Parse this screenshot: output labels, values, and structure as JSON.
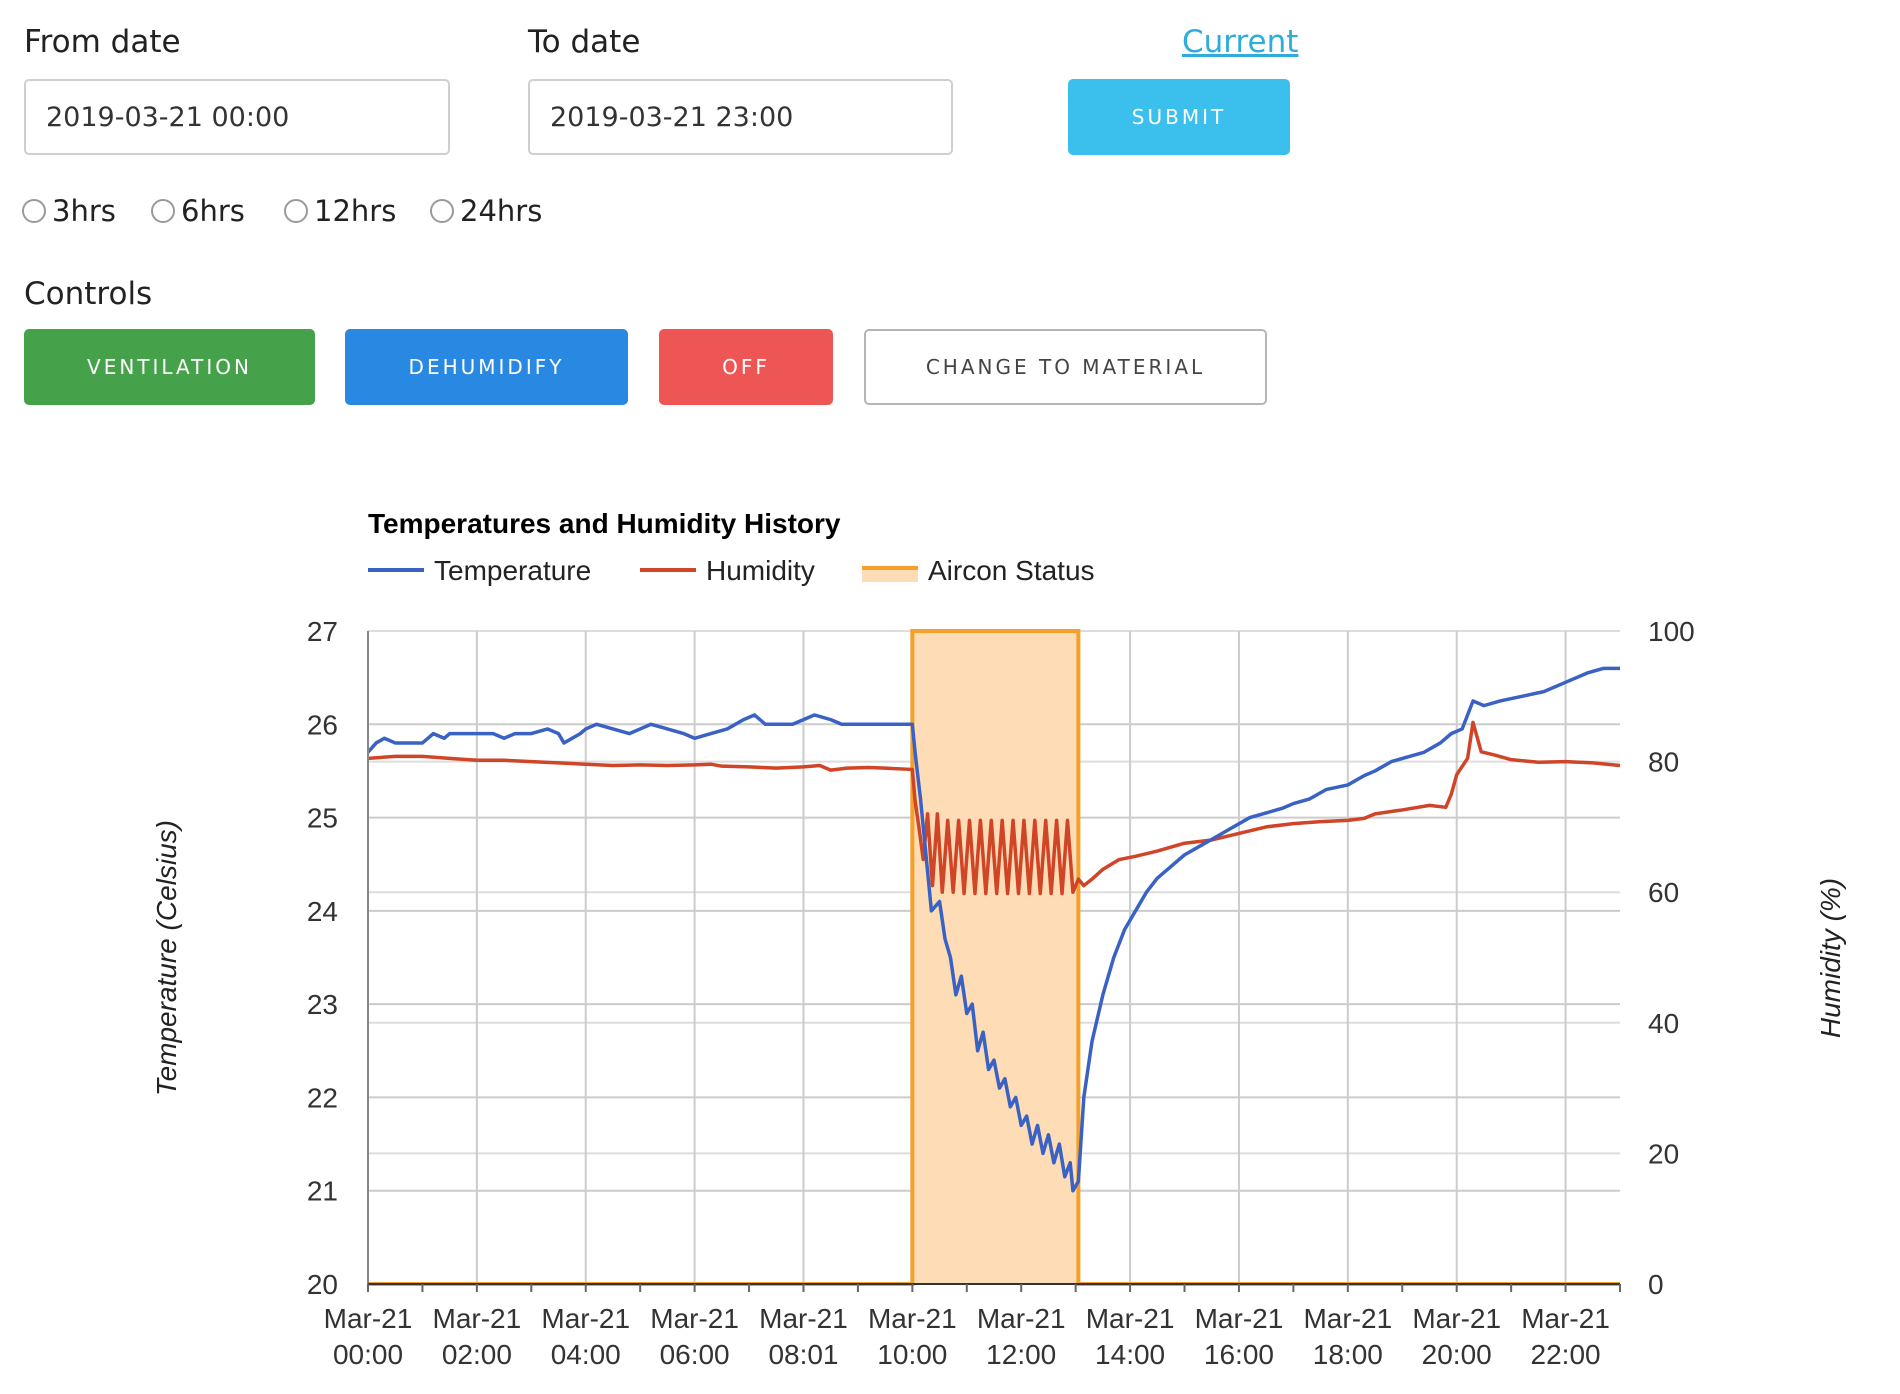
{
  "form": {
    "from_label": "From date",
    "from_value": "2019-03-21 00:00",
    "to_label": "To date",
    "to_value": "2019-03-21 23:00",
    "current_link": "Current",
    "submit_label": "SUBMIT",
    "ranges": [
      "3hrs",
      "6hrs",
      "12hrs",
      "24hrs"
    ]
  },
  "controls": {
    "heading": "Controls",
    "buttons": [
      {
        "label": "VENTILATION",
        "color": "#45a24b"
      },
      {
        "label": "DEHUMIDIFY",
        "color": "#2888e2"
      },
      {
        "label": "OFF",
        "color": "#ee5555"
      },
      {
        "label": "CHANGE TO MATERIAL",
        "color": "#ffffff"
      }
    ],
    "submit_color": "#3bc0ee"
  },
  "chart_data": {
    "type": "line",
    "title": "Temperatures and Humidity History",
    "legend": [
      "Temperature",
      "Humidity",
      "Aircon Status"
    ],
    "legend_position": "top-left",
    "ylabel": "Temperature (Celsius)",
    "y2label": "Humidity (%)",
    "ylim": [
      20,
      27
    ],
    "y2lim": [
      0,
      100
    ],
    "yticks": [
      20,
      21,
      22,
      23,
      24,
      25,
      26,
      27
    ],
    "y2ticks": [
      0,
      20,
      40,
      60,
      80,
      100
    ],
    "xlim": [
      0,
      23
    ],
    "xticks": [
      {
        "x": 0,
        "line1": "Mar-21",
        "line2": "00:00"
      },
      {
        "x": 2,
        "line1": "Mar-21",
        "line2": "02:00"
      },
      {
        "x": 4,
        "line1": "Mar-21",
        "line2": "04:00"
      },
      {
        "x": 6,
        "line1": "Mar-21",
        "line2": "06:00"
      },
      {
        "x": 8,
        "line1": "Mar-21",
        "line2": "08:01"
      },
      {
        "x": 10,
        "line1": "Mar-21",
        "line2": "10:00"
      },
      {
        "x": 12,
        "line1": "Mar-21",
        "line2": "12:00"
      },
      {
        "x": 14,
        "line1": "Mar-21",
        "line2": "14:00"
      },
      {
        "x": 16,
        "line1": "Mar-21",
        "line2": "16:00"
      },
      {
        "x": 18,
        "line1": "Mar-21",
        "line2": "18:00"
      },
      {
        "x": 20,
        "line1": "Mar-21",
        "line2": "20:00"
      },
      {
        "x": 22,
        "line1": "Mar-21",
        "line2": "22:00"
      }
    ],
    "grid": true,
    "colors": {
      "temperature": "#3a62c4",
      "humidity": "#d04428",
      "aircon": "#f5a02a",
      "aircon_fill": "#fddcb6"
    },
    "aircon": {
      "on_start": 10.0,
      "on_end": 13.05,
      "on_value": 100,
      "off_value": 0
    },
    "temperature": [
      [
        0.0,
        25.7
      ],
      [
        0.15,
        25.8
      ],
      [
        0.3,
        25.85
      ],
      [
        0.5,
        25.8
      ],
      [
        0.7,
        25.8
      ],
      [
        1.0,
        25.8
      ],
      [
        1.1,
        25.85
      ],
      [
        1.2,
        25.9
      ],
      [
        1.4,
        25.85
      ],
      [
        1.5,
        25.9
      ],
      [
        2.0,
        25.9
      ],
      [
        2.3,
        25.9
      ],
      [
        2.5,
        25.85
      ],
      [
        2.7,
        25.9
      ],
      [
        3.0,
        25.9
      ],
      [
        3.3,
        25.95
      ],
      [
        3.5,
        25.9
      ],
      [
        3.6,
        25.8
      ],
      [
        3.9,
        25.9
      ],
      [
        4.0,
        25.95
      ],
      [
        4.2,
        26.0
      ],
      [
        4.5,
        25.95
      ],
      [
        4.8,
        25.9
      ],
      [
        5.0,
        25.95
      ],
      [
        5.2,
        26.0
      ],
      [
        5.5,
        25.95
      ],
      [
        5.8,
        25.9
      ],
      [
        6.0,
        25.85
      ],
      [
        6.3,
        25.9
      ],
      [
        6.6,
        25.95
      ],
      [
        6.9,
        26.05
      ],
      [
        7.1,
        26.1
      ],
      [
        7.3,
        26.0
      ],
      [
        7.8,
        26.0
      ],
      [
        8.2,
        26.1
      ],
      [
        8.5,
        26.05
      ],
      [
        8.7,
        26.0
      ],
      [
        9.0,
        26.0
      ],
      [
        9.5,
        26.0
      ],
      [
        10.0,
        26.0
      ],
      [
        10.05,
        25.7
      ],
      [
        10.15,
        25.2
      ],
      [
        10.25,
        24.6
      ],
      [
        10.35,
        24.0
      ],
      [
        10.5,
        24.1
      ],
      [
        10.6,
        23.7
      ],
      [
        10.7,
        23.5
      ],
      [
        10.8,
        23.1
      ],
      [
        10.9,
        23.3
      ],
      [
        11.0,
        22.9
      ],
      [
        11.1,
        23.0
      ],
      [
        11.2,
        22.5
      ],
      [
        11.3,
        22.7
      ],
      [
        11.4,
        22.3
      ],
      [
        11.5,
        22.4
      ],
      [
        11.6,
        22.1
      ],
      [
        11.7,
        22.2
      ],
      [
        11.8,
        21.9
      ],
      [
        11.9,
        22.0
      ],
      [
        12.0,
        21.7
      ],
      [
        12.1,
        21.8
      ],
      [
        12.2,
        21.5
      ],
      [
        12.3,
        21.7
      ],
      [
        12.4,
        21.4
      ],
      [
        12.5,
        21.6
      ],
      [
        12.6,
        21.3
      ],
      [
        12.7,
        21.5
      ],
      [
        12.8,
        21.15
      ],
      [
        12.9,
        21.3
      ],
      [
        12.95,
        21.0
      ],
      [
        13.05,
        21.1
      ],
      [
        13.15,
        22.0
      ],
      [
        13.3,
        22.6
      ],
      [
        13.5,
        23.1
      ],
      [
        13.7,
        23.5
      ],
      [
        13.9,
        23.8
      ],
      [
        14.1,
        24.0
      ],
      [
        14.3,
        24.2
      ],
      [
        14.5,
        24.35
      ],
      [
        14.8,
        24.5
      ],
      [
        15.0,
        24.6
      ],
      [
        15.3,
        24.7
      ],
      [
        15.6,
        24.8
      ],
      [
        15.9,
        24.9
      ],
      [
        16.2,
        25.0
      ],
      [
        16.5,
        25.05
      ],
      [
        16.8,
        25.1
      ],
      [
        17.0,
        25.15
      ],
      [
        17.3,
        25.2
      ],
      [
        17.6,
        25.3
      ],
      [
        18.0,
        25.35
      ],
      [
        18.3,
        25.45
      ],
      [
        18.5,
        25.5
      ],
      [
        18.8,
        25.6
      ],
      [
        19.1,
        25.65
      ],
      [
        19.4,
        25.7
      ],
      [
        19.7,
        25.8
      ],
      [
        19.9,
        25.9
      ],
      [
        20.1,
        25.95
      ],
      [
        20.3,
        26.25
      ],
      [
        20.5,
        26.2
      ],
      [
        20.8,
        26.25
      ],
      [
        21.2,
        26.3
      ],
      [
        21.6,
        26.35
      ],
      [
        22.0,
        26.45
      ],
      [
        22.4,
        26.55
      ],
      [
        22.7,
        26.6
      ],
      [
        23.0,
        26.6
      ]
    ],
    "humidity": [
      [
        0.0,
        80.5
      ],
      [
        0.5,
        80.8
      ],
      [
        1.0,
        80.8
      ],
      [
        1.5,
        80.5
      ],
      [
        2.0,
        80.2
      ],
      [
        2.5,
        80.2
      ],
      [
        3.0,
        80.0
      ],
      [
        3.5,
        79.8
      ],
      [
        4.0,
        79.6
      ],
      [
        4.5,
        79.4
      ],
      [
        5.0,
        79.5
      ],
      [
        5.5,
        79.4
      ],
      [
        6.0,
        79.5
      ],
      [
        6.3,
        79.6
      ],
      [
        6.5,
        79.3
      ],
      [
        7.0,
        79.2
      ],
      [
        7.5,
        79.0
      ],
      [
        8.0,
        79.2
      ],
      [
        8.3,
        79.4
      ],
      [
        8.5,
        78.7
      ],
      [
        8.8,
        79.0
      ],
      [
        9.2,
        79.1
      ],
      [
        9.5,
        79.0
      ],
      [
        10.0,
        78.8
      ],
      [
        10.05,
        74.0
      ],
      [
        10.12,
        70.0
      ],
      [
        10.2,
        65.0
      ],
      [
        10.28,
        72.0
      ],
      [
        10.37,
        61.0
      ],
      [
        10.46,
        72.0
      ],
      [
        10.55,
        60.0
      ],
      [
        10.65,
        71.0
      ],
      [
        10.75,
        60.0
      ],
      [
        10.85,
        71.0
      ],
      [
        10.95,
        59.8
      ],
      [
        11.05,
        71.0
      ],
      [
        11.15,
        59.8
      ],
      [
        11.25,
        71.0
      ],
      [
        11.35,
        59.8
      ],
      [
        11.45,
        71.0
      ],
      [
        11.55,
        59.8
      ],
      [
        11.65,
        71.0
      ],
      [
        11.75,
        59.8
      ],
      [
        11.85,
        71.0
      ],
      [
        11.95,
        59.8
      ],
      [
        12.05,
        71.0
      ],
      [
        12.15,
        59.8
      ],
      [
        12.25,
        71.0
      ],
      [
        12.35,
        59.8
      ],
      [
        12.45,
        71.0
      ],
      [
        12.55,
        59.8
      ],
      [
        12.65,
        71.0
      ],
      [
        12.75,
        59.8
      ],
      [
        12.85,
        71.0
      ],
      [
        12.95,
        60.0
      ],
      [
        13.05,
        62.0
      ],
      [
        13.15,
        61.0
      ],
      [
        13.3,
        62.0
      ],
      [
        13.5,
        63.5
      ],
      [
        13.8,
        65.0
      ],
      [
        14.1,
        65.5
      ],
      [
        14.5,
        66.3
      ],
      [
        15.0,
        67.5
      ],
      [
        15.5,
        68.0
      ],
      [
        16.0,
        69.0
      ],
      [
        16.5,
        70.0
      ],
      [
        17.0,
        70.5
      ],
      [
        17.5,
        70.8
      ],
      [
        18.0,
        71.0
      ],
      [
        18.3,
        71.3
      ],
      [
        18.5,
        72.0
      ],
      [
        19.0,
        72.6
      ],
      [
        19.5,
        73.3
      ],
      [
        19.8,
        73.0
      ],
      [
        19.9,
        75.0
      ],
      [
        20.0,
        78.0
      ],
      [
        20.2,
        80.5
      ],
      [
        20.3,
        86.0
      ],
      [
        20.45,
        81.5
      ],
      [
        20.7,
        81.0
      ],
      [
        21.0,
        80.3
      ],
      [
        21.5,
        79.9
      ],
      [
        22.0,
        80.0
      ],
      [
        22.5,
        79.8
      ],
      [
        23.0,
        79.4
      ]
    ]
  }
}
